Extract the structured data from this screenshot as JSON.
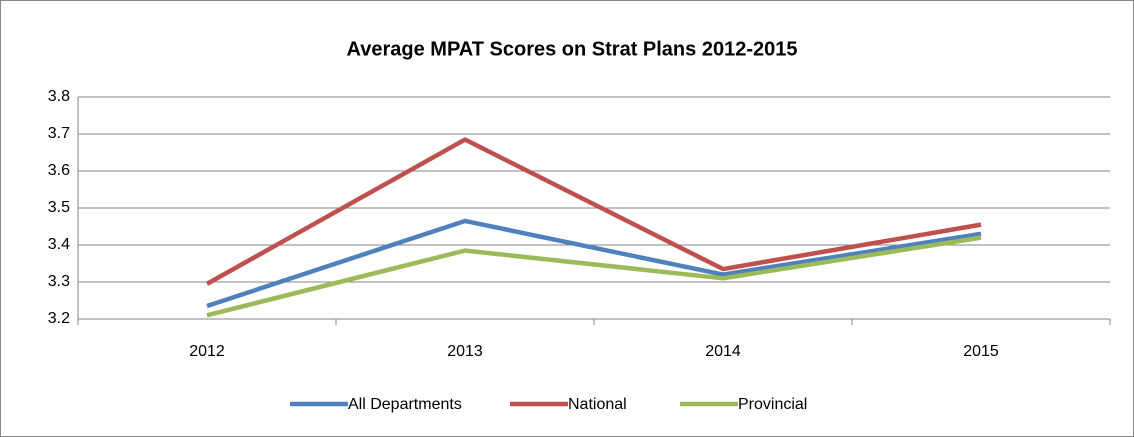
{
  "chart_data": {
    "type": "line",
    "title": "Average MPAT Scores on Strat Plans 2012-2015",
    "categories": [
      "2012",
      "2013",
      "2014",
      "2015"
    ],
    "series": [
      {
        "name": "All Departments",
        "color": "#4f81bd",
        "values": [
          3.235,
          3.465,
          3.32,
          3.43
        ]
      },
      {
        "name": "National",
        "color": "#c0504d",
        "values": [
          3.295,
          3.685,
          3.335,
          3.455
        ]
      },
      {
        "name": "Provincial",
        "color": "#9bbb59",
        "values": [
          3.21,
          3.385,
          3.31,
          3.42
        ]
      }
    ],
    "ylim": [
      3.2,
      3.8
    ],
    "yticks": [
      3.2,
      3.3,
      3.4,
      3.5,
      3.6,
      3.7,
      3.8
    ],
    "grid": true,
    "legend": "bottom"
  }
}
